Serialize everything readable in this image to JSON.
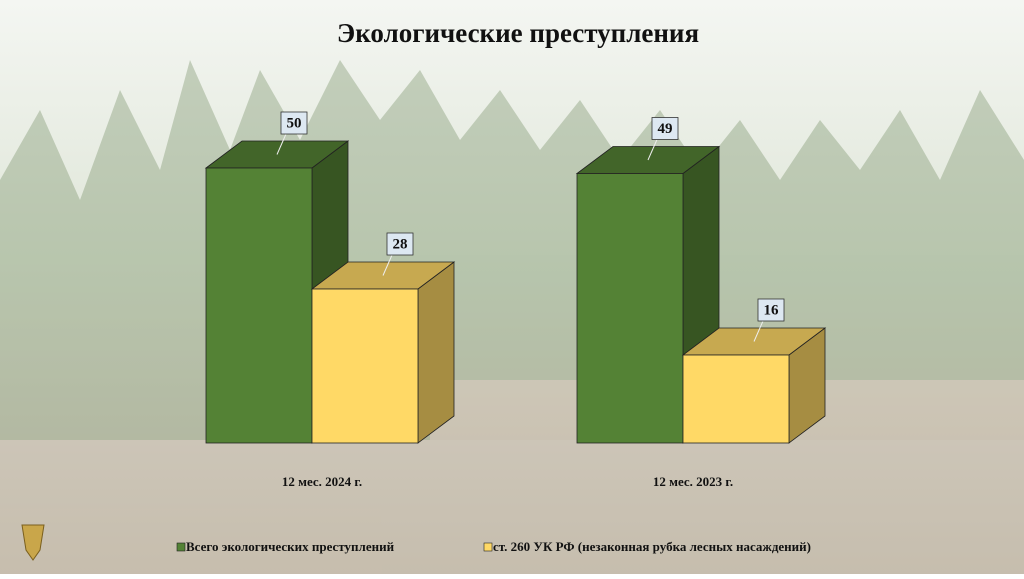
{
  "chart_data": {
    "type": "bar3d",
    "title": "Экологические преступления",
    "categories": [
      "12 мес. 2024 г.",
      "12 мес. 2023 г."
    ],
    "series": [
      {
        "name": "Всего экологических преступлений",
        "color": "#548235",
        "values": [
          50,
          49
        ]
      },
      {
        "name": "ст. 260 УК РФ (незаконная рубка лесных насаждений)",
        "color": "#ffd966",
        "values": [
          28,
          16
        ]
      }
    ]
  }
}
